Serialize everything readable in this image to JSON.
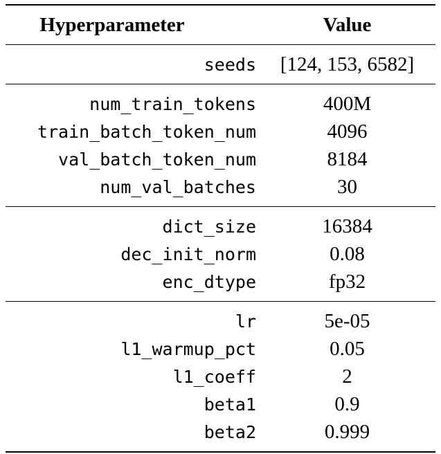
{
  "table": {
    "headers": {
      "param": "Hyperparameter",
      "value": "Value"
    },
    "groups": [
      {
        "rows": [
          {
            "param": "seeds",
            "value": "[124, 153, 6582]"
          }
        ]
      },
      {
        "rows": [
          {
            "param": "num_train_tokens",
            "value": "400M"
          },
          {
            "param": "train_batch_token_num",
            "value": "4096"
          },
          {
            "param": "val_batch_token_num",
            "value": "8184"
          },
          {
            "param": "num_val_batches",
            "value": "30"
          }
        ]
      },
      {
        "rows": [
          {
            "param": "dict_size",
            "value": "16384"
          },
          {
            "param": "dec_init_norm",
            "value": "0.08"
          },
          {
            "param": "enc_dtype",
            "value": "fp32"
          }
        ]
      },
      {
        "rows": [
          {
            "param": "lr",
            "value": "5e-05"
          },
          {
            "param": "l1_warmup_pct",
            "value": "0.05"
          },
          {
            "param": "l1_coeff",
            "value": "2"
          },
          {
            "param": "beta1",
            "value": "0.9"
          },
          {
            "param": "beta2",
            "value": "0.999"
          }
        ]
      }
    ]
  }
}
